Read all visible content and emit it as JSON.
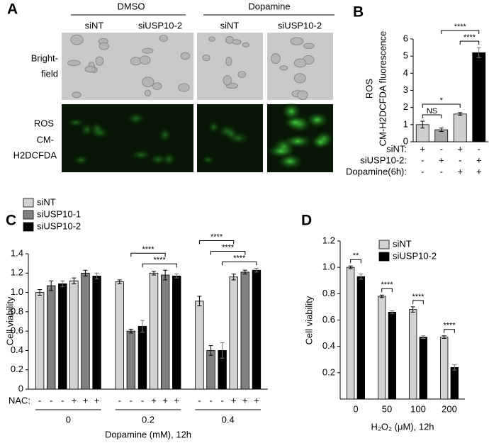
{
  "panel_a": {
    "label": "A",
    "groups": [
      "DMSO",
      "Dopamine"
    ],
    "columns": [
      "siNT",
      "siUSP10-2",
      "siNT",
      "siUSP10-2"
    ],
    "rows": [
      [
        "Bright-",
        "field"
      ],
      [
        "ROS",
        "CM-",
        "H2DCFDA"
      ]
    ]
  },
  "chart_data": [
    {
      "type": "bar",
      "panel_label": "B",
      "ylabel": [
        "ROS",
        "CM-H2DCFDA fluorescence"
      ],
      "values": [
        1.0,
        0.7,
        1.62,
        5.2
      ],
      "errors": [
        0.2,
        0.1,
        0.08,
        0.3
      ],
      "colors": [
        "#cfcfcf",
        "#a8a8a8",
        "#cfcfcf",
        "#000000"
      ],
      "ylim": [
        0,
        6
      ],
      "yticks": [
        0,
        1,
        2,
        3,
        4,
        5,
        6
      ],
      "conditions": [
        {
          "label": "siNT:",
          "signs": [
            "+",
            "-",
            "+",
            "-"
          ]
        },
        {
          "label": "siUSP10-2:",
          "signs": [
            "-",
            "+",
            "-",
            "+"
          ]
        },
        {
          "label": "Dopamine(6h):",
          "signs": [
            "-",
            "-",
            "+",
            "+"
          ]
        }
      ],
      "significance": [
        {
          "pair": [
            0,
            1
          ],
          "label": "NS"
        },
        {
          "pair": [
            0,
            2
          ],
          "label": "*"
        },
        {
          "pair": [
            2,
            3
          ],
          "label": "****"
        },
        {
          "pair": [
            1,
            3
          ],
          "label": "****"
        }
      ]
    },
    {
      "type": "grouped_bar",
      "panel_label": "C",
      "ylabel": "Cell viability",
      "xlabel": "Dopamine (mM), 12h",
      "groups": [
        "0",
        "0.2",
        "0.4"
      ],
      "row_label": "NAC:",
      "levels": [
        "-",
        "+"
      ],
      "series": [
        {
          "name": "siNT",
          "color": "#d3d3d3",
          "values": [
            1.0,
            1.12,
            1.11,
            1.2,
            0.91,
            1.16
          ],
          "errors": [
            0.03,
            0.03,
            0.02,
            0.02,
            0.05,
            0.03
          ]
        },
        {
          "name": "siUSP10-1",
          "color": "#808080",
          "values": [
            1.07,
            1.2,
            0.6,
            1.18,
            0.4,
            1.21
          ],
          "errors": [
            0.05,
            0.03,
            0.02,
            0.05,
            0.05,
            0.02
          ]
        },
        {
          "name": "siUSP10-2",
          "color": "#000000",
          "values": [
            1.09,
            1.17,
            0.65,
            1.17,
            0.4,
            1.23
          ],
          "errors": [
            0.03,
            0.03,
            0.06,
            0.02,
            0.08,
            0.02
          ]
        }
      ],
      "ylim": [
        0,
        1.4
      ],
      "yticks": [
        0,
        0.2,
        0.4,
        0.6,
        0.8,
        {
          "value": 1,
          "label": "1.0"
        },
        1.2,
        1.4
      ],
      "significance": [
        {
          "group": 1,
          "pair": [
            2,
            5
          ],
          "label": "****"
        },
        {
          "group": 1,
          "pair": [
            1,
            4
          ],
          "label": "****"
        },
        {
          "group": 2,
          "pair": [
            2,
            5
          ],
          "label": "****"
        },
        {
          "group": 2,
          "pair": [
            1,
            4
          ],
          "label": "****"
        },
        {
          "group": 2,
          "pair": [
            0,
            3
          ],
          "label": "****"
        }
      ]
    },
    {
      "type": "grouped_bar",
      "panel_label": "D",
      "ylabel": "Cell viability",
      "xlabel": "H₂O₂ (μM), 12h",
      "categories": [
        "0",
        "50",
        "100",
        "200"
      ],
      "series": [
        {
          "name": "siNT",
          "color": "#d3d3d3",
          "values": [
            1.0,
            0.78,
            0.68,
            0.47
          ],
          "errors": [
            0.01,
            0.01,
            0.02,
            0.01
          ]
        },
        {
          "name": "siUSP10-2",
          "color": "#000000",
          "values": [
            0.93,
            0.66,
            0.47,
            0.24
          ],
          "errors": [
            0.02,
            0.01,
            0.01,
            0.02
          ]
        }
      ],
      "ylim": [
        0,
        1.2
      ],
      "yticks": [
        0.2,
        0.4,
        0.6,
        0.8,
        {
          "value": 1,
          "label": "1.0"
        },
        1.2
      ],
      "significance": [
        {
          "group": 0,
          "pair": [
            0,
            1
          ],
          "label": "**"
        },
        {
          "group": 1,
          "pair": [
            0,
            1
          ],
          "label": "****"
        },
        {
          "group": 2,
          "pair": [
            0,
            1
          ],
          "label": "****"
        },
        {
          "group": 3,
          "pair": [
            0,
            1
          ],
          "label": "****"
        }
      ]
    }
  ]
}
